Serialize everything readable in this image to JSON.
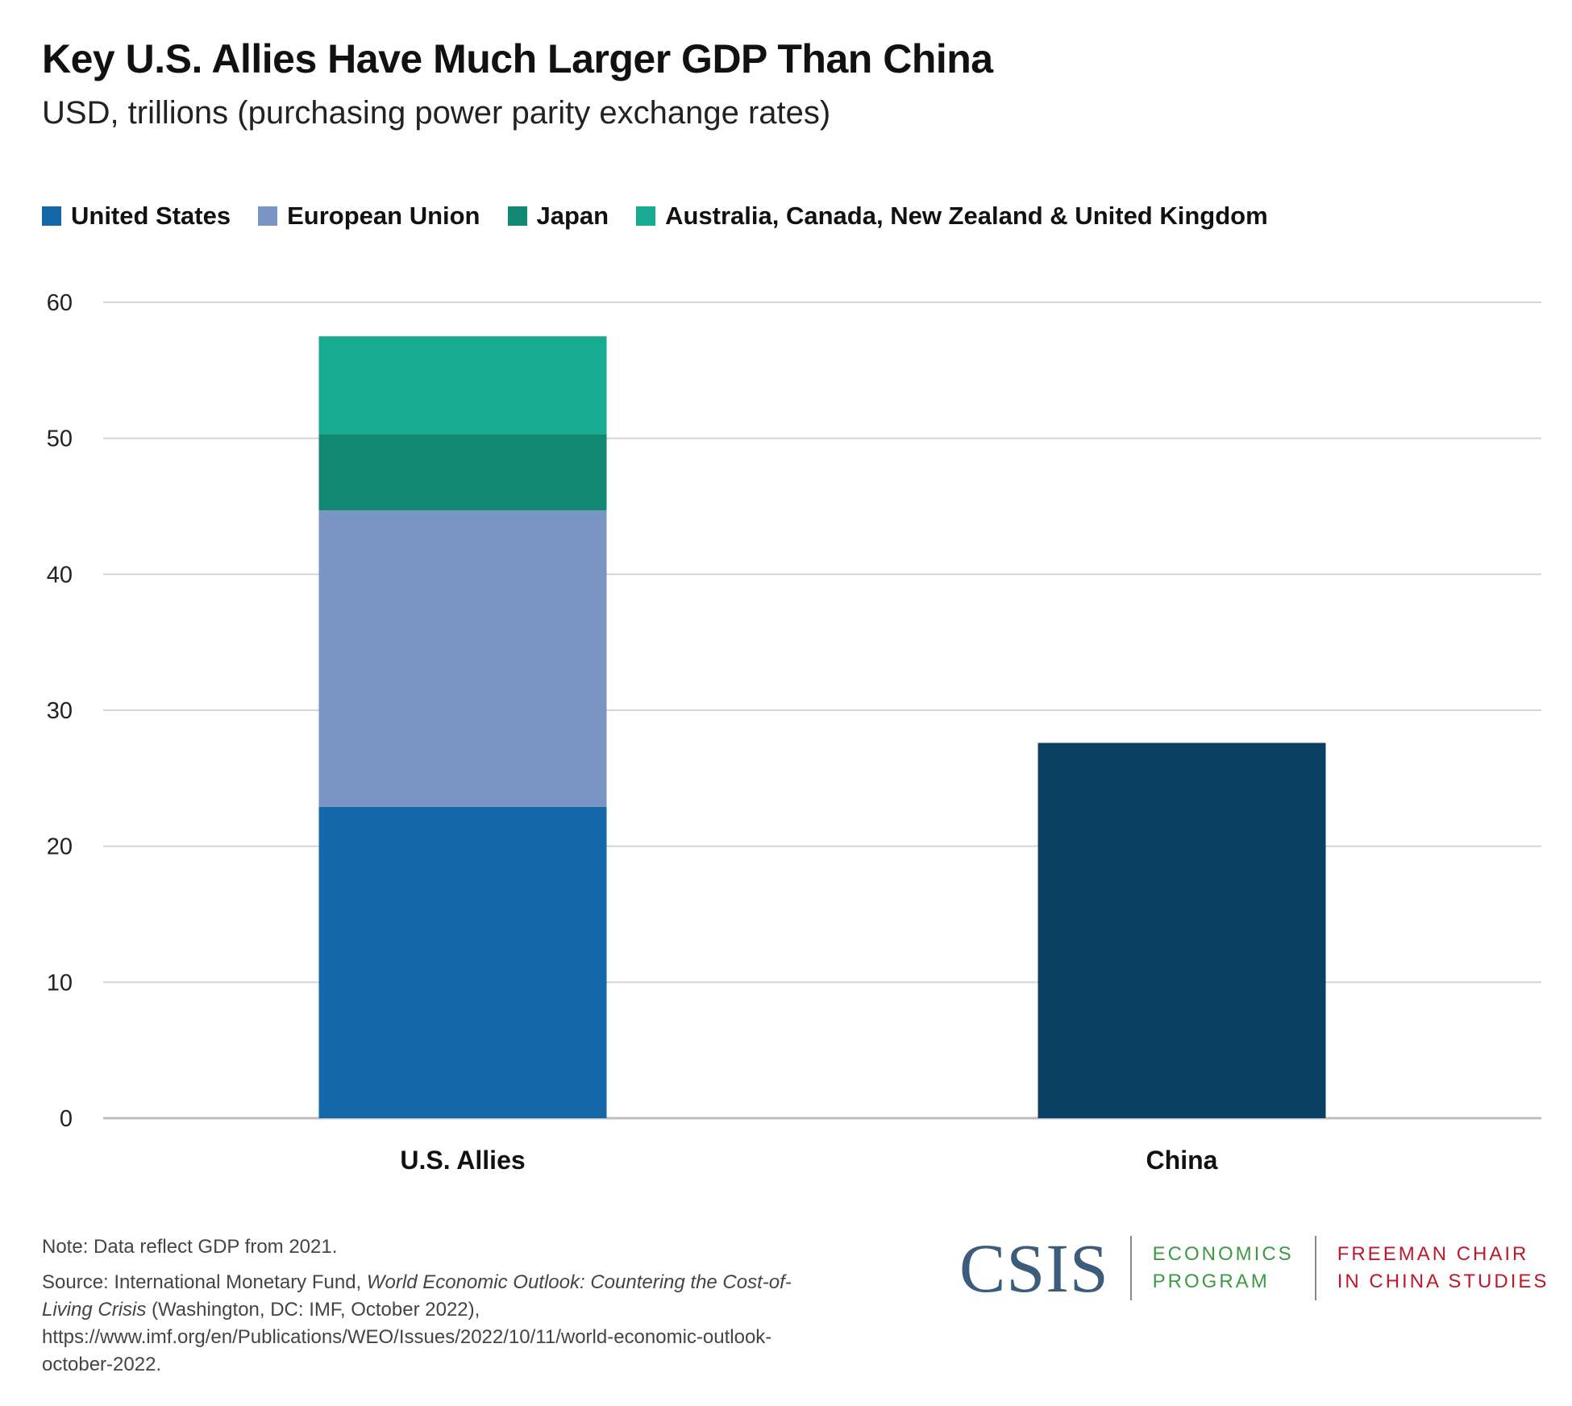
{
  "chart_data": {
    "type": "bar",
    "stacked": true,
    "title": "Key U.S. Allies Have Much Larger GDP Than China",
    "subtitle": "USD, trillions (purchasing power parity exchange rates)",
    "categories": [
      "U.S. Allies",
      "China"
    ],
    "ylim": [
      0,
      60
    ],
    "yticks": [
      0,
      10,
      20,
      30,
      40,
      50,
      60
    ],
    "grid": true,
    "legend_position": "top-left",
    "series": [
      {
        "name": "United States",
        "color": "#1467a8",
        "values": [
          22.9,
          null
        ]
      },
      {
        "name": "European Union",
        "color": "#7a95c4",
        "values": [
          21.8,
          null
        ]
      },
      {
        "name": "Japan",
        "color": "#128873",
        "values": [
          5.6,
          null
        ]
      },
      {
        "name": "Australia, Canada, New Zealand & United Kingdom",
        "color": "#18ab92",
        "values": [
          7.2,
          null
        ]
      },
      {
        "name": "",
        "color": "#0a4064",
        "values": [
          null,
          27.6
        ]
      }
    ]
  },
  "notes": {
    "note": "Note: Data reflect GDP from 2021.",
    "source_prefix": "Source: International Monetary Fund, ",
    "source_title": "World Economic Outlook: Countering the Cost-of-Living Crisis",
    "source_suffix": " (Washington, DC: IMF, October 2022), https://www.imf.org/en/Publications/WEO/Issues/2022/10/11/world-economic-outlook-october-2022."
  },
  "logo": {
    "csis": "CSIS",
    "program_line1": "ECONOMICS",
    "program_line2": "PROGRAM",
    "chair_line1": "FREEMAN CHAIR",
    "chair_line2": "IN CHINA STUDIES"
  }
}
